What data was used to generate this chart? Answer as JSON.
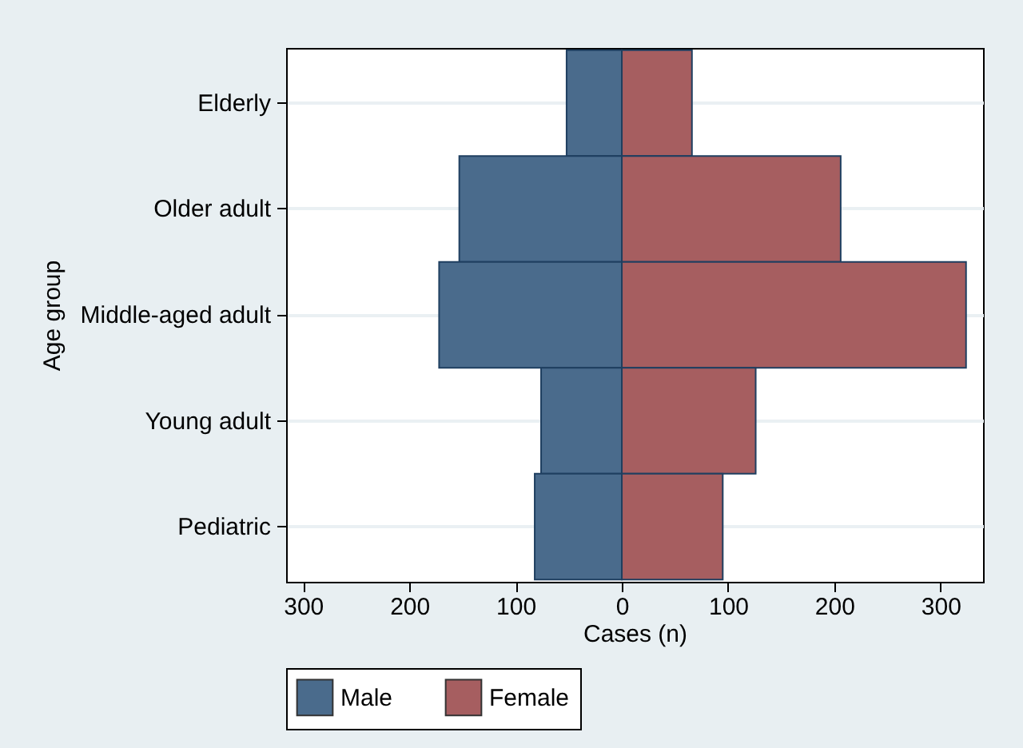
{
  "chart_data": {
    "type": "bar",
    "orientation": "horizontal",
    "xlabel": "Cases (n)",
    "ylabel": "Age group",
    "categories": [
      "Elderly",
      "Older adult",
      "Middle-aged adult",
      "Young adult",
      "Pediatric"
    ],
    "series": [
      {
        "name": "Male",
        "color": "#4a6b8c",
        "values": [
          -52,
          -153,
          -172,
          -76,
          -82
        ]
      },
      {
        "name": "Female",
        "color": "#a65e60",
        "values": [
          66,
          206,
          324,
          126,
          95
        ]
      }
    ],
    "xlim": [
      -316,
      340
    ],
    "xticks": [
      {
        "value": -300,
        "label": "300"
      },
      {
        "value": -200,
        "label": "200"
      },
      {
        "value": -100,
        "label": "100"
      },
      0,
      100,
      200,
      300
    ],
    "stacked": true,
    "grid": "y",
    "legend": "bottom"
  }
}
